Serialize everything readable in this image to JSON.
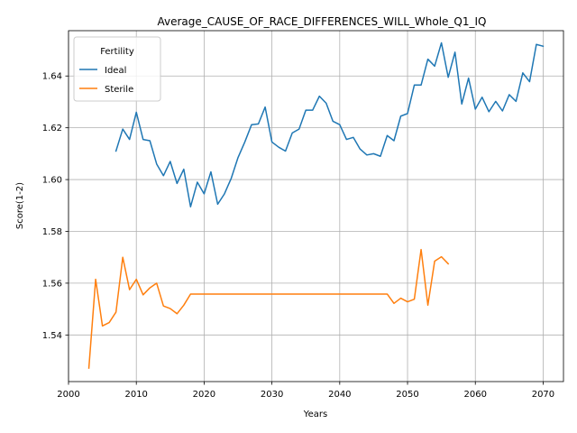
{
  "chart_data": {
    "type": "line",
    "title": "Average_CAUSE_OF_RACE_DIFFERENCES_WILL_Whole_Q1_IQ",
    "xlabel": "Years",
    "ylabel": "Score(1-2)",
    "xlim": [
      2000,
      2073
    ],
    "ylim": [
      1.522,
      1.6575
    ],
    "x_ticks": [
      2000,
      2010,
      2020,
      2030,
      2040,
      2050,
      2060,
      2070
    ],
    "y_ticks": [
      1.54,
      1.56,
      1.58,
      1.6,
      1.62,
      1.64
    ],
    "grid": true,
    "legend": {
      "title": "Fertility",
      "placement": "top-left"
    },
    "series": [
      {
        "name": "Ideal",
        "color": "#1f77b4",
        "x": [
          2007,
          2008,
          2009,
          2010,
          2011,
          2012,
          2013,
          2014,
          2015,
          2016,
          2017,
          2018,
          2019,
          2020,
          2021,
          2022,
          2023,
          2024,
          2025,
          2026,
          2027,
          2028,
          2029,
          2030,
          2031,
          2032,
          2033,
          2034,
          2035,
          2036,
          2037,
          2038,
          2039,
          2040,
          2041,
          2042,
          2043,
          2044,
          2045,
          2046,
          2047,
          2048,
          2049,
          2050,
          2051,
          2052,
          2053,
          2054,
          2055,
          2056,
          2057,
          2058,
          2059,
          2060,
          2061,
          2062,
          2063,
          2064,
          2065,
          2066,
          2067,
          2068,
          2069,
          2070
        ],
        "values": [
          1.611,
          1.6195,
          1.6155,
          1.626,
          1.6155,
          1.615,
          1.606,
          1.6015,
          1.607,
          1.5985,
          1.604,
          1.5895,
          1.599,
          1.5945,
          1.603,
          1.5905,
          1.5945,
          1.6005,
          1.6085,
          1.6145,
          1.6212,
          1.6215,
          1.628,
          1.6145,
          1.6125,
          1.611,
          1.618,
          1.6195,
          1.6268,
          1.6268,
          1.6322,
          1.6295,
          1.6225,
          1.6212,
          1.6155,
          1.6163,
          1.6118,
          1.6095,
          1.61,
          1.609,
          1.617,
          1.615,
          1.6245,
          1.6255,
          1.6365,
          1.6365,
          1.6465,
          1.6438,
          1.6528,
          1.6395,
          1.6492,
          1.6292,
          1.6392,
          1.6272,
          1.6318,
          1.6262,
          1.6302,
          1.6265,
          1.6328,
          1.6302,
          1.6412,
          1.6378,
          1.6522,
          1.6515
        ]
      },
      {
        "name": "Sterile",
        "color": "#ff7f0e",
        "x": [
          2003,
          2004,
          2005,
          2006,
          2007,
          2008,
          2009,
          2010,
          2011,
          2012,
          2013,
          2014,
          2015,
          2016,
          2017,
          2018,
          2019,
          2020,
          2021,
          2022,
          2023,
          2024,
          2025,
          2026,
          2027,
          2028,
          2029,
          2030,
          2031,
          2032,
          2033,
          2034,
          2035,
          2036,
          2037,
          2038,
          2039,
          2040,
          2041,
          2042,
          2043,
          2044,
          2045,
          2046,
          2047,
          2048,
          2049,
          2050,
          2051,
          2052,
          2053,
          2054,
          2055,
          2056
        ],
        "values": [
          1.5272,
          1.5615,
          1.5435,
          1.5448,
          1.5488,
          1.57,
          1.5575,
          1.5615,
          1.5555,
          1.5582,
          1.56,
          1.5512,
          1.5502,
          1.5482,
          1.5515,
          1.5558,
          1.5558,
          1.5558,
          1.5558,
          1.5558,
          1.5558,
          1.5558,
          1.5558,
          1.5558,
          1.5558,
          1.5558,
          1.5558,
          1.5558,
          1.5558,
          1.5558,
          1.5558,
          1.5558,
          1.5558,
          1.5558,
          1.5558,
          1.5558,
          1.5558,
          1.5558,
          1.5558,
          1.5558,
          1.5558,
          1.5558,
          1.5558,
          1.5558,
          1.5558,
          1.5522,
          1.5542,
          1.5528,
          1.5538,
          1.573,
          1.5515,
          1.5685,
          1.5702,
          1.5675
        ]
      }
    ]
  }
}
